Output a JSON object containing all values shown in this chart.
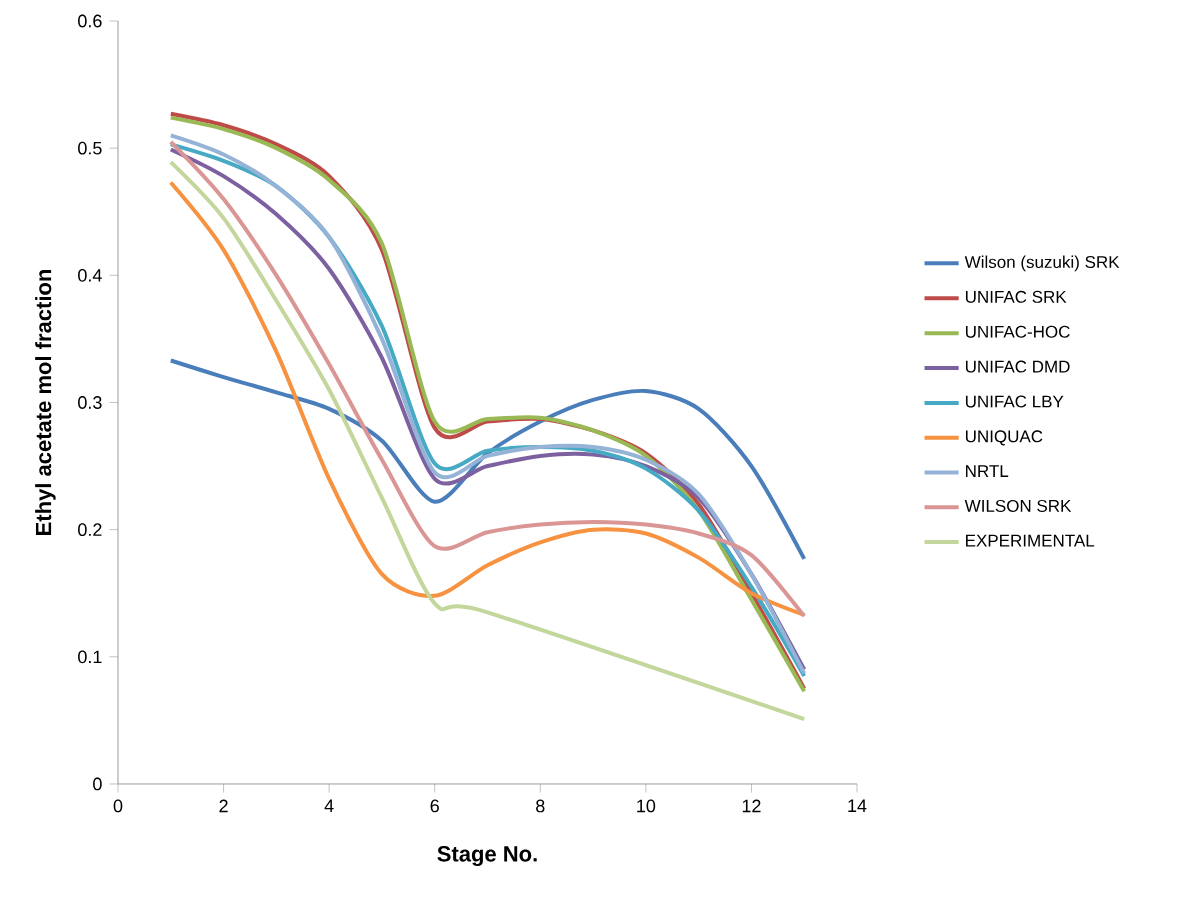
{
  "chart_data": {
    "type": "line",
    "xlabel": "Stage No.",
    "ylabel": "Ethyl acetate mol fraction",
    "x": [
      1,
      2,
      3,
      4,
      5,
      6,
      7,
      8,
      9,
      10,
      11,
      12,
      13
    ],
    "xlim": [
      0,
      14
    ],
    "xticks": [
      0,
      2,
      4,
      6,
      8,
      10,
      12,
      14
    ],
    "ylim": [
      0,
      0.6
    ],
    "yticks": [
      0,
      0.1,
      0.2,
      0.3,
      0.4,
      0.5,
      0.6
    ],
    "grid": false,
    "legend": "right",
    "marker": "none",
    "line_style": "solid",
    "series": [
      {
        "name": "Wilson (suzuki) SRK",
        "color": "#4a7ebb",
        "values": [
          0.333,
          0.32,
          0.308,
          0.295,
          0.27,
          0.222,
          0.26,
          0.285,
          0.302,
          0.309,
          0.295,
          0.25,
          0.177
        ]
      },
      {
        "name": "UNIFAC SRK",
        "color": "#be4b48",
        "values": [
          0.527,
          0.518,
          0.503,
          0.478,
          0.42,
          0.28,
          0.285,
          0.287,
          0.278,
          0.26,
          0.22,
          0.15,
          0.075
        ]
      },
      {
        "name": "UNIFAC-HOC",
        "color": "#98b954",
        "values": [
          0.524,
          0.515,
          0.5,
          0.475,
          0.425,
          0.285,
          0.287,
          0.288,
          0.278,
          0.258,
          0.215,
          0.145,
          0.073
        ]
      },
      {
        "name": "UNIFAC DMD",
        "color": "#7d60a0",
        "values": [
          0.499,
          0.478,
          0.448,
          0.405,
          0.335,
          0.24,
          0.25,
          0.258,
          0.259,
          0.25,
          0.225,
          0.165,
          0.09
        ]
      },
      {
        "name": "UNIFAC  LBY",
        "color": "#46aac5",
        "values": [
          0.503,
          0.49,
          0.47,
          0.43,
          0.36,
          0.252,
          0.262,
          0.265,
          0.262,
          0.248,
          0.215,
          0.155,
          0.085
        ]
      },
      {
        "name": "UNIQUAC",
        "color": "#f69240",
        "values": [
          0.473,
          0.42,
          0.34,
          0.24,
          0.165,
          0.148,
          0.172,
          0.19,
          0.2,
          0.197,
          0.178,
          0.15,
          0.133
        ]
      },
      {
        "name": "NRTL",
        "color": "#95b3d7",
        "values": [
          0.51,
          0.495,
          0.47,
          0.43,
          0.35,
          0.245,
          0.258,
          0.265,
          0.265,
          0.255,
          0.228,
          0.165,
          0.087
        ]
      },
      {
        "name": "WILSON SRK",
        "color": "#d99694",
        "values": [
          0.505,
          0.46,
          0.4,
          0.33,
          0.255,
          0.187,
          0.198,
          0.204,
          0.206,
          0.204,
          0.197,
          0.18,
          0.132
        ]
      },
      {
        "name": "EXPERIMENTAL",
        "color": "#c3d69b",
        "x": [
          1,
          2,
          3,
          4,
          5,
          6,
          7,
          13
        ],
        "values": [
          0.489,
          0.445,
          0.38,
          0.31,
          0.225,
          0.142,
          0.135,
          0.051
        ]
      }
    ]
  }
}
